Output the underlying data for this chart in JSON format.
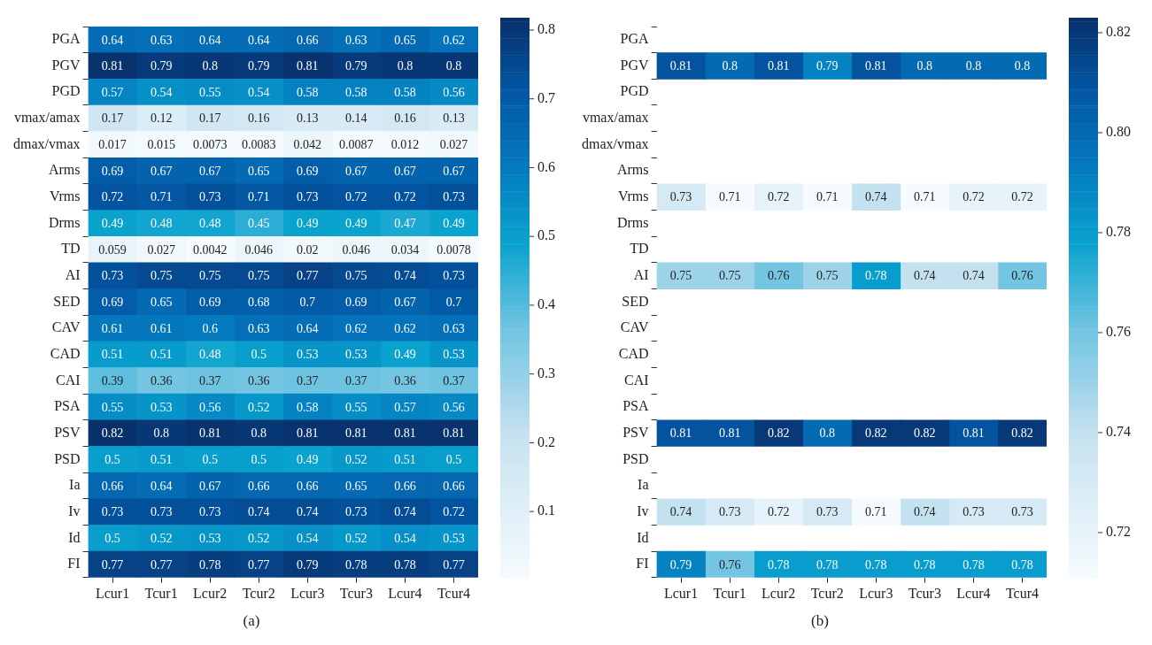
{
  "chart_data": [
    {
      "type": "heatmap",
      "categories": [
        "Lcur1",
        "Tcur1",
        "Lcur2",
        "Tcur2",
        "Lcur3",
        "Tcur3",
        "Lcur4",
        "Tcur4"
      ],
      "y_categories": [
        "PGA",
        "PGV",
        "PGD",
        "vmax/amax",
        "dmax/vmax",
        "Arms",
        "Vrms",
        "Drms",
        "TD",
        "AI",
        "SED",
        "CAV",
        "CAD",
        "CAI",
        "PSA",
        "PSV",
        "PSD",
        "Ia",
        "Iv",
        "Id",
        "FI"
      ],
      "cells": [
        [
          0.64,
          0.63,
          0.64,
          0.64,
          0.66,
          0.63,
          0.65,
          0.62
        ],
        [
          0.81,
          0.79,
          0.8,
          0.79,
          0.81,
          0.79,
          0.8,
          0.8
        ],
        [
          0.57,
          0.54,
          0.55,
          0.54,
          0.58,
          0.58,
          0.58,
          0.56
        ],
        [
          0.17,
          0.12,
          0.17,
          0.16,
          0.13,
          0.14,
          0.16,
          0.13
        ],
        [
          0.017,
          0.015,
          0.0073,
          0.0083,
          0.042,
          0.0087,
          0.012,
          0.027
        ],
        [
          0.69,
          0.67,
          0.67,
          0.65,
          0.69,
          0.67,
          0.67,
          0.67
        ],
        [
          0.72,
          0.71,
          0.73,
          0.71,
          0.73,
          0.72,
          0.72,
          0.73
        ],
        [
          0.49,
          0.48,
          0.48,
          0.45,
          0.49,
          0.49,
          0.47,
          0.49
        ],
        [
          0.059,
          0.027,
          0.0042,
          0.046,
          0.02,
          0.046,
          0.034,
          0.0078
        ],
        [
          0.73,
          0.75,
          0.75,
          0.75,
          0.77,
          0.75,
          0.74,
          0.73
        ],
        [
          0.69,
          0.65,
          0.69,
          0.68,
          0.7,
          0.69,
          0.67,
          0.7
        ],
        [
          0.61,
          0.61,
          0.6,
          0.63,
          0.64,
          0.62,
          0.62,
          0.63
        ],
        [
          0.51,
          0.51,
          0.48,
          0.5,
          0.53,
          0.53,
          0.49,
          0.53
        ],
        [
          0.39,
          0.36,
          0.37,
          0.36,
          0.37,
          0.37,
          0.36,
          0.37
        ],
        [
          0.55,
          0.53,
          0.56,
          0.52,
          0.58,
          0.55,
          0.57,
          0.56
        ],
        [
          0.82,
          0.8,
          0.81,
          0.8,
          0.81,
          0.81,
          0.81,
          0.81
        ],
        [
          0.5,
          0.51,
          0.5,
          0.5,
          0.49,
          0.52,
          0.51,
          0.5
        ],
        [
          0.66,
          0.64,
          0.67,
          0.66,
          0.66,
          0.65,
          0.66,
          0.66
        ],
        [
          0.73,
          0.73,
          0.73,
          0.74,
          0.74,
          0.73,
          0.74,
          0.72
        ],
        [
          0.5,
          0.52,
          0.53,
          0.52,
          0.54,
          0.52,
          0.54,
          0.53
        ],
        [
          0.77,
          0.77,
          0.78,
          0.77,
          0.79,
          0.78,
          0.78,
          0.77
        ]
      ],
      "clim": [
        0.004,
        0.818
      ],
      "cticks": [
        0.1,
        0.2,
        0.3,
        0.4,
        0.5,
        0.6,
        0.7,
        0.8
      ],
      "data_labels": true,
      "annotations": [
        "(a)"
      ]
    },
    {
      "type": "heatmap",
      "categories": [
        "Lcur1",
        "Tcur1",
        "Lcur2",
        "Tcur2",
        "Lcur3",
        "Tcur3",
        "Lcur4",
        "Tcur4"
      ],
      "y_categories": [
        "PGA",
        "PGV",
        "PGD",
        "vmax/amax",
        "dmax/vmax",
        "Arms",
        "Vrms",
        "Drms",
        "TD",
        "AI",
        "SED",
        "CAV",
        "CAD",
        "CAI",
        "PSA",
        "PSV",
        "PSD",
        "Ia",
        "Iv",
        "Id",
        "FI"
      ],
      "cells": [
        [
          null,
          null,
          null,
          null,
          null,
          null,
          null,
          null
        ],
        [
          0.81,
          0.8,
          0.81,
          0.79,
          0.81,
          0.8,
          0.8,
          0.8
        ],
        [
          null,
          null,
          null,
          null,
          null,
          null,
          null,
          null
        ],
        [
          null,
          null,
          null,
          null,
          null,
          null,
          null,
          null
        ],
        [
          null,
          null,
          null,
          null,
          null,
          null,
          null,
          null
        ],
        [
          null,
          null,
          null,
          null,
          null,
          null,
          null,
          null
        ],
        [
          0.73,
          0.71,
          0.72,
          0.71,
          0.74,
          0.71,
          0.72,
          0.72
        ],
        [
          null,
          null,
          null,
          null,
          null,
          null,
          null,
          null
        ],
        [
          null,
          null,
          null,
          null,
          null,
          null,
          null,
          null
        ],
        [
          0.75,
          0.75,
          0.76,
          0.75,
          0.78,
          0.74,
          0.74,
          0.76
        ],
        [
          null,
          null,
          null,
          null,
          null,
          null,
          null,
          null
        ],
        [
          null,
          null,
          null,
          null,
          null,
          null,
          null,
          null
        ],
        [
          null,
          null,
          null,
          null,
          null,
          null,
          null,
          null
        ],
        [
          null,
          null,
          null,
          null,
          null,
          null,
          null,
          null
        ],
        [
          null,
          null,
          null,
          null,
          null,
          null,
          null,
          null
        ],
        [
          0.81,
          0.81,
          0.82,
          0.8,
          0.82,
          0.82,
          0.81,
          0.82
        ],
        [
          null,
          null,
          null,
          null,
          null,
          null,
          null,
          null
        ],
        [
          null,
          null,
          null,
          null,
          null,
          null,
          null,
          null
        ],
        [
          0.74,
          0.73,
          0.72,
          0.73,
          0.71,
          0.74,
          0.73,
          0.73
        ],
        [
          null,
          null,
          null,
          null,
          null,
          null,
          null,
          null
        ],
        [
          0.79,
          0.76,
          0.78,
          0.78,
          0.78,
          0.78,
          0.78,
          0.78
        ]
      ],
      "clim": [
        0.711,
        0.823
      ],
      "cticks": [
        {
          "value": 0.72,
          "label": "0.72"
        },
        {
          "value": 0.74,
          "label": "0.74"
        },
        {
          "value": 0.76,
          "label": "0.76"
        },
        {
          "value": 0.78,
          "label": "0.78"
        },
        {
          "value": 0.8,
          "label": "0.80"
        },
        {
          "value": 0.82,
          "label": "0.82"
        }
      ],
      "data_labels": true,
      "annotations": [
        "(b)"
      ]
    }
  ]
}
